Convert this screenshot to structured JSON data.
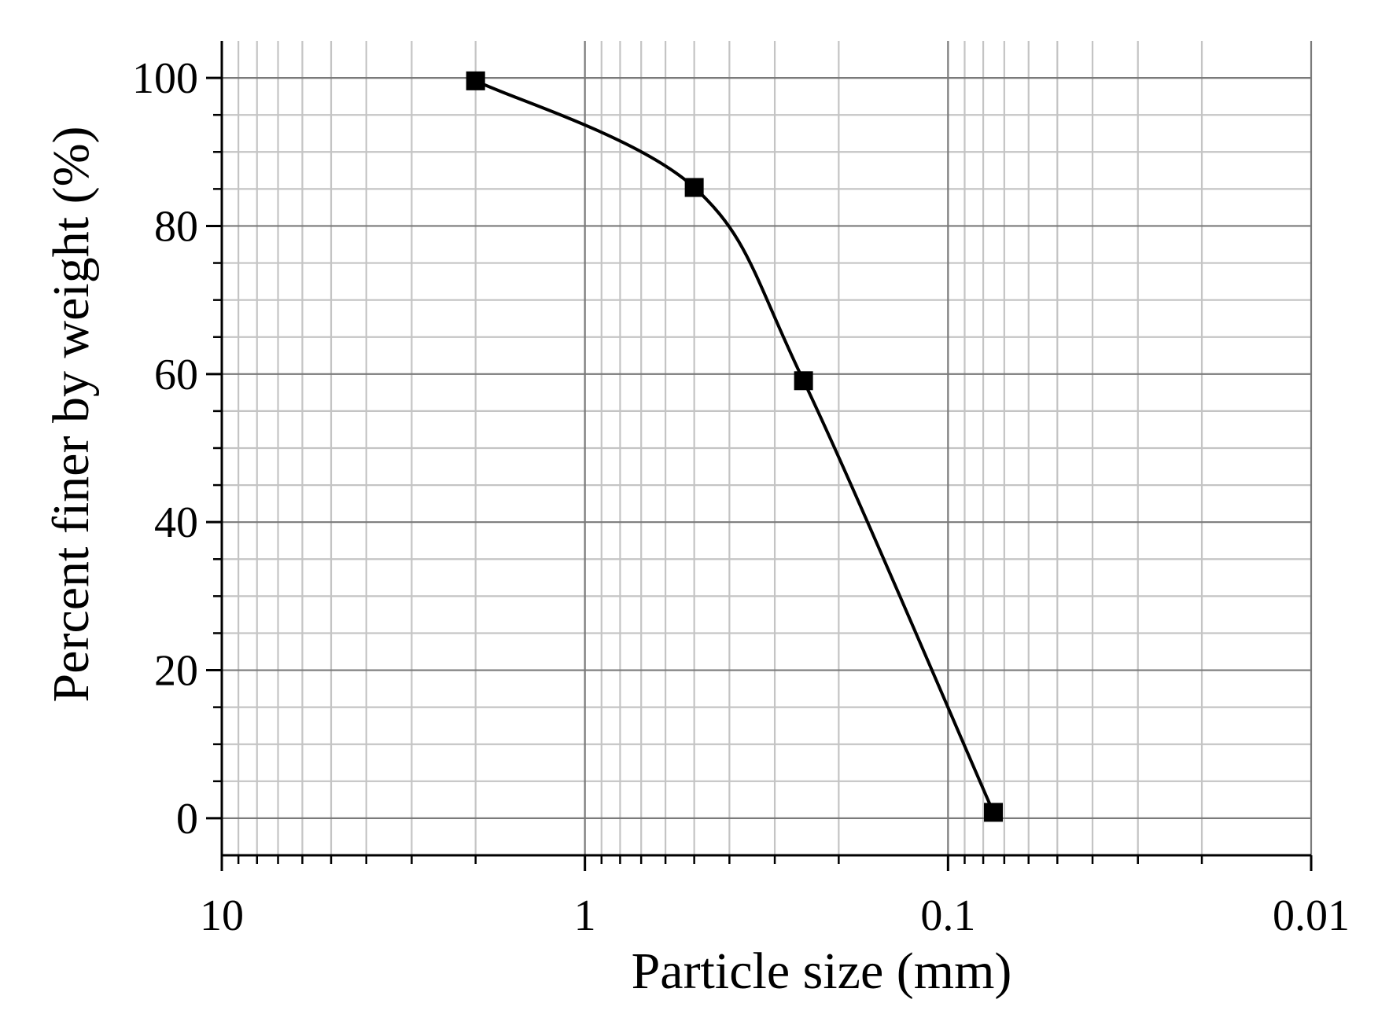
{
  "chart_data": {
    "type": "line",
    "xlabel": "Particle size (mm)",
    "ylabel": "Percent finer by weight (%)",
    "x_scale": "log",
    "x_reversed": true,
    "xlim": [
      10,
      0.01
    ],
    "ylim": [
      -5,
      105
    ],
    "x_ticks": [
      10,
      1,
      0.1,
      0.01
    ],
    "x_tick_labels": [
      "10",
      "1",
      "0.1",
      "0.01"
    ],
    "y_ticks": [
      0,
      20,
      40,
      60,
      80,
      100
    ],
    "y_tick_labels": [
      "0",
      "20",
      "40",
      "60",
      "80",
      "100"
    ],
    "grid": true,
    "series": [
      {
        "x": [
          2.0,
          0.5,
          0.25,
          0.075
        ],
        "y": [
          99.6,
          85.2,
          59.1,
          0.8
        ],
        "marker": "square",
        "color": "#000000"
      }
    ]
  }
}
